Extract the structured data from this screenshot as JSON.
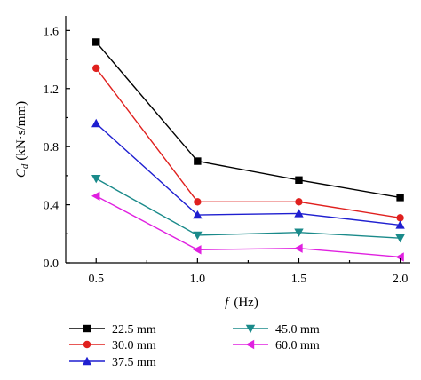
{
  "chart_data": {
    "type": "line",
    "x": [
      0.5,
      1.0,
      1.5,
      2.0
    ],
    "xticks": [
      "0.5",
      "1.0",
      "1.5",
      "2.0"
    ],
    "yticks": [
      "0.0",
      "0.4",
      "0.8",
      "1.2",
      "1.6"
    ],
    "xlim": [
      0.35,
      2.05
    ],
    "ylim": [
      0,
      1.7
    ],
    "xlabel_main": "f",
    "xlabel_unit": "(Hz)",
    "ylabel_main": "C",
    "ylabel_sub": "d",
    "ylabel_unit": "(kN·s/mm)",
    "grid": false,
    "legend_position": "bottom",
    "series": [
      {
        "name": "22.5 mm",
        "values": [
          1.52,
          0.7,
          0.57,
          0.45
        ],
        "color": "#000000",
        "marker": "square"
      },
      {
        "name": "30.0 mm",
        "values": [
          1.34,
          0.42,
          0.42,
          0.31
        ],
        "color": "#e0201e",
        "marker": "circle"
      },
      {
        "name": "37.5 mm",
        "values": [
          0.96,
          0.33,
          0.34,
          0.26
        ],
        "color": "#1f1fd0",
        "marker": "triangle-up"
      },
      {
        "name": "45.0 mm",
        "values": [
          0.58,
          0.19,
          0.21,
          0.17
        ],
        "color": "#1a8a8a",
        "marker": "triangle-down"
      },
      {
        "name": "60.0 mm",
        "values": [
          0.46,
          0.09,
          0.1,
          0.04
        ],
        "color": "#e020e0",
        "marker": "triangle-left"
      }
    ]
  }
}
